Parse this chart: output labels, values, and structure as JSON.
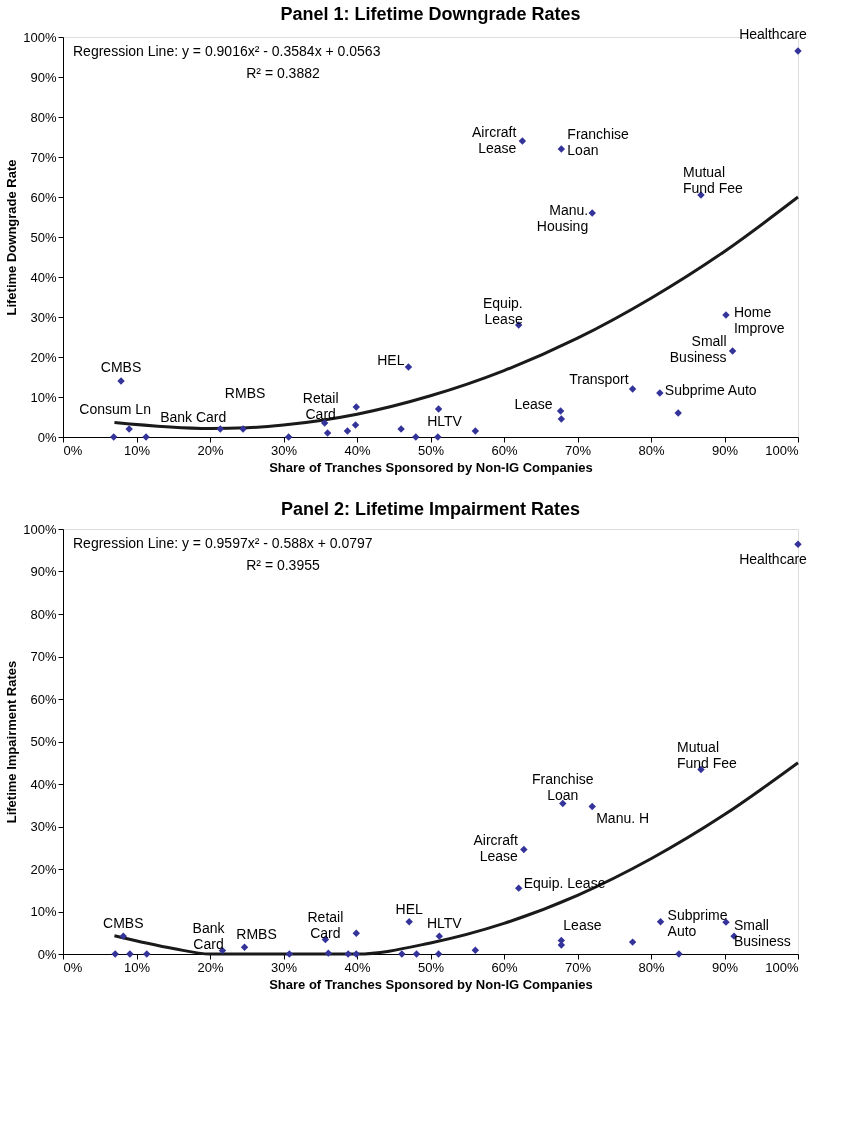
{
  "chart_data": [
    {
      "type": "scatter",
      "title": "Panel 1: Lifetime Downgrade Rates",
      "xlabel": "Share of Tranches Sponsored by Non-IG Companies",
      "ylabel": "Lifetime Downgrade Rate",
      "xlim": [
        0,
        100
      ],
      "ylim": [
        0,
        100
      ],
      "xticks": [
        {
          "value": 0,
          "label": "0%"
        },
        {
          "value": 10,
          "label": "10%"
        },
        {
          "value": 20,
          "label": "20%"
        },
        {
          "value": 30,
          "label": "30%"
        },
        {
          "value": 40,
          "label": "40%"
        },
        {
          "value": 50,
          "label": "50%"
        },
        {
          "value": 60,
          "label": "60%"
        },
        {
          "value": 70,
          "label": "70%"
        },
        {
          "value": 80,
          "label": "80%"
        },
        {
          "value": 90,
          "label": "90%"
        },
        {
          "value": 100,
          "label": "100%"
        }
      ],
      "yticks": [
        {
          "value": 0,
          "label": "0%"
        },
        {
          "value": 10,
          "label": "10%"
        },
        {
          "value": 20,
          "label": "20%"
        },
        {
          "value": 30,
          "label": "30%"
        },
        {
          "value": 40,
          "label": "40%"
        },
        {
          "value": 50,
          "label": "50%"
        },
        {
          "value": 60,
          "label": "60%"
        },
        {
          "value": 70,
          "label": "70%"
        },
        {
          "value": 80,
          "label": "80%"
        },
        {
          "value": 90,
          "label": "90%"
        },
        {
          "value": 100,
          "label": "100%"
        }
      ],
      "grid": false,
      "series": [
        {
          "marker": "diamond",
          "color": "#333399",
          "x": [
            100,
            62.5,
            67.8,
            72,
            86.8,
            62,
            90.2,
            91.1,
            77.5,
            81.2,
            83.7,
            67.7,
            67.8,
            47,
            51.1,
            51,
            56.1,
            46,
            48,
            35.6,
            36,
            38.7,
            39.8,
            39.9,
            30.7,
            24.5,
            21.4,
            9,
            6.9,
            11.3,
            7.9
          ],
          "values": [
            96.5,
            74,
            72,
            56,
            60.5,
            28,
            30.5,
            21.5,
            12,
            11,
            6,
            6.5,
            4.5,
            17.5,
            7,
            0,
            1.5,
            2,
            0,
            3.5,
            1,
            1.5,
            3,
            7.5,
            0,
            2,
            2,
            2,
            0,
            0,
            14
          ]
        },
        {
          "type": "line",
          "marker": "none",
          "color": "#1a1a1a",
          "x": [
            7,
            20,
            25,
            30,
            40,
            50,
            60,
            70,
            80,
            90,
            100
          ],
          "values": [
            3.6,
            2.1,
            2.3,
            3.0,
            5.7,
            10.3,
            16.6,
            24.7,
            34.7,
            46.4,
            60
          ]
        }
      ],
      "annotations": [
        "Regression Line: y = 0.9016x² - 0.3584x + 0.0563",
        "R² = 0.3882",
        {
          "text": "Healthcare",
          "x": 100,
          "y": 96.5
        },
        {
          "text": "Aircraft\nLease",
          "x": 62.5,
          "y": 74
        },
        {
          "text": "Franchise\nLoan",
          "x": 67.8,
          "y": 72
        },
        {
          "text": "Manu.\nHousing",
          "x": 72,
          "y": 56
        },
        {
          "text": "Mutual\nFund Fee",
          "x": 86.8,
          "y": 60.5
        },
        {
          "text": "Equip.\nLease",
          "x": 62,
          "y": 28.25
        },
        {
          "text": "Home\nImprove",
          "x": 90.2,
          "y": 30.5
        },
        {
          "text": "Small\nBusiness",
          "x": 91.1,
          "y": 21.3
        },
        {
          "text": "Transport",
          "x": 77.5,
          "y": 11.75
        },
        {
          "text": "Subprime Auto",
          "x": 81.2,
          "y": 11
        },
        {
          "text": "Lease",
          "x": 67.7,
          "y": 6.5
        },
        {
          "text": "HEL",
          "x": 47,
          "y": 17.5
        },
        {
          "text": "HLTV",
          "x": 51.1,
          "y": 6.75
        },
        {
          "text": "Retail\nCard",
          "x": 35.6,
          "y": 3.5
        },
        {
          "text": "RMBS",
          "x": 24.5,
          "y": 2.25
        },
        {
          "text": "Bank Card",
          "x": 21.4,
          "y": 2.25
        },
        {
          "text": "Consum Ln",
          "x": 9,
          "y": 2.25
        },
        {
          "text": "CMBS",
          "x": 7.9,
          "y": 13.75
        }
      ]
    },
    {
      "type": "scatter",
      "title": "Panel 2: Lifetime Impairment Rates",
      "xlabel": "Share of Tranches Sponsored by Non-IG Companies",
      "ylabel": "Lifetime Impairment Rates",
      "xlim": [
        0,
        100
      ],
      "ylim": [
        0,
        100
      ],
      "xticks": [
        {
          "value": 0,
          "label": "0%"
        },
        {
          "value": 10,
          "label": "10%"
        },
        {
          "value": 20,
          "label": "20%"
        },
        {
          "value": 30,
          "label": "30%"
        },
        {
          "value": 40,
          "label": "40%"
        },
        {
          "value": 50,
          "label": "50%"
        },
        {
          "value": 60,
          "label": "60%"
        },
        {
          "value": 70,
          "label": "70%"
        },
        {
          "value": 80,
          "label": "80%"
        },
        {
          "value": 90,
          "label": "90%"
        },
        {
          "value": 100,
          "label": "100%"
        }
      ],
      "yticks": [
        {
          "value": 0,
          "label": "0%"
        },
        {
          "value": 10,
          "label": "10%"
        },
        {
          "value": 20,
          "label": "20%"
        },
        {
          "value": 30,
          "label": "30%"
        },
        {
          "value": 40,
          "label": "40%"
        },
        {
          "value": 50,
          "label": "50%"
        },
        {
          "value": 60,
          "label": "60%"
        },
        {
          "value": 70,
          "label": "70%"
        },
        {
          "value": 80,
          "label": "80%"
        },
        {
          "value": 90,
          "label": "90%"
        },
        {
          "value": 100,
          "label": "100%"
        }
      ],
      "grid": false,
      "series": [
        {
          "marker": "diamond",
          "color": "#333399",
          "x": [
            100,
            86.8,
            68,
            72,
            62.7,
            62,
            47.1,
            51.2,
            35.7,
            39.9,
            8.2,
            24.7,
            21.7,
            67.8,
            67.8,
            81.3,
            90.2,
            91.3,
            7.1,
            9.1,
            11.4,
            30.8,
            36.1,
            38.8,
            39.9,
            46.1,
            48.1,
            51.1,
            83.8,
            56.1,
            77.5
          ],
          "values": [
            96.4,
            43.4,
            35.4,
            34.7,
            24.6,
            15.5,
            7.6,
            4.2,
            3.4,
            4.9,
            4.2,
            1.6,
            0.8,
            3.2,
            2.1,
            7.6,
            7.5,
            4.2,
            0,
            0,
            0,
            0,
            0.2,
            0,
            0,
            0,
            0,
            0,
            0,
            0.9,
            2.8
          ]
        },
        {
          "type": "line",
          "marker": "none",
          "color": "#1a1a1a",
          "x": [
            7,
            15,
            20,
            30,
            40,
            50,
            60,
            70,
            80,
            90,
            100
          ],
          "values": [
            4.3,
            1.3,
            0,
            0,
            0,
            2.6,
            7.2,
            13.8,
            22.4,
            32.8,
            45
          ]
        }
      ],
      "annotations": [
        "Regression Line: y = 0.9597x² - 0.588x + 0.0797",
        "R² = 0.3955",
        {
          "text": "Healthcare",
          "x": 100,
          "y": 96.4
        },
        {
          "text": "Mutual\nFund Fee",
          "x": 86.8,
          "y": 43.4
        },
        {
          "text": "Franchise\nLoan",
          "x": 68,
          "y": 35.4
        },
        {
          "text": "Manu. H",
          "x": 72,
          "y": 34.7
        },
        {
          "text": "Aircraft\nLease",
          "x": 62.7,
          "y": 24.6
        },
        {
          "text": "Equip. Lease",
          "x": 62,
          "y": 15.5
        },
        {
          "text": "HEL",
          "x": 47.1,
          "y": 7.6
        },
        {
          "text": "HLTV",
          "x": 51.2,
          "y": 4.2
        },
        {
          "text": "Retail\nCard",
          "x": 35.7,
          "y": 3.4
        },
        {
          "text": "RMBS",
          "x": 24.7,
          "y": 1.6
        },
        {
          "text": "Bank\nCard",
          "x": 21.7,
          "y": 0.8
        },
        {
          "text": "CMBS",
          "x": 8.2,
          "y": 4.2
        },
        {
          "text": "Lease",
          "x": 67.8,
          "y": 3.2
        },
        {
          "text": "Subprime\nAuto",
          "x": 81.3,
          "y": 7.6
        },
        {
          "text": "Small\nBusiness",
          "x": 90.2,
          "y": 7.5
        }
      ]
    }
  ]
}
